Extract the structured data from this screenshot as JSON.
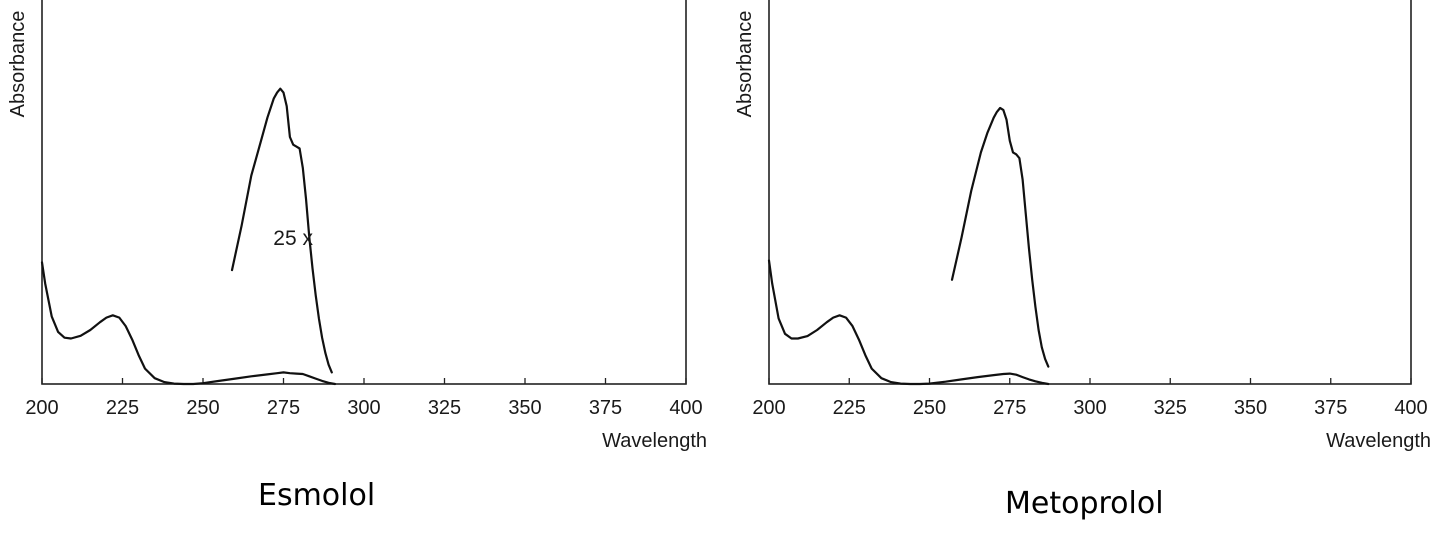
{
  "chart_data": [
    {
      "type": "line",
      "title": "",
      "caption": "Esmolol",
      "xlabel": "Wavelength",
      "ylabel": "Absorbance",
      "xlim": [
        200,
        400
      ],
      "ylim": [
        0,
        1
      ],
      "grid": false,
      "x_ticks": [
        "200",
        "225",
        "250",
        "275",
        "300",
        "325",
        "350",
        "375",
        "400"
      ],
      "annotations": [
        {
          "text": "25 x",
          "x": 278,
          "y": 0.36
        }
      ],
      "series": [
        {
          "x": [
            200,
            201,
            203,
            205,
            207,
            209,
            212,
            215,
            218,
            220,
            222,
            224,
            226,
            228,
            230,
            232,
            235,
            238,
            241,
            244,
            247,
            250,
            255,
            260,
            265,
            270,
            273,
            275,
            277,
            279,
            281,
            283,
            285,
            287,
            289,
            291
          ],
          "y": [
            0.315,
            0.26,
            0.175,
            0.135,
            0.12,
            0.118,
            0.125,
            0.14,
            0.16,
            0.172,
            0.178,
            0.172,
            0.15,
            0.115,
            0.075,
            0.04,
            0.015,
            0.005,
            0.001,
            0,
            0,
            0.002,
            0.008,
            0.014,
            0.02,
            0.025,
            0.028,
            0.03,
            0.028,
            0.027,
            0.026,
            0.02,
            0.014,
            0.008,
            0.003,
            0
          ]
        },
        {
          "x": [
            259,
            262,
            265,
            268,
            270,
            272,
            273,
            274,
            275,
            276,
            277,
            278,
            279,
            280,
            281,
            282,
            283,
            284,
            285,
            286,
            287,
            288,
            289,
            290
          ],
          "y": [
            0.295,
            0.41,
            0.54,
            0.63,
            0.69,
            0.74,
            0.755,
            0.765,
            0.755,
            0.72,
            0.64,
            0.62,
            0.615,
            0.61,
            0.56,
            0.48,
            0.38,
            0.3,
            0.23,
            0.17,
            0.12,
            0.08,
            0.05,
            0.03
          ]
        }
      ]
    },
    {
      "type": "line",
      "title": "",
      "caption": "Metoprolol",
      "xlabel": "Wavelength",
      "ylabel": "Absorbance",
      "xlim": [
        200,
        400
      ],
      "ylim": [
        0,
        1
      ],
      "grid": false,
      "x_ticks": [
        "200",
        "225",
        "250",
        "275",
        "300",
        "325",
        "350",
        "375",
        "400"
      ],
      "series": [
        {
          "x": [
            200,
            201,
            203,
            205,
            207,
            209,
            212,
            215,
            218,
            220,
            222,
            224,
            226,
            228,
            230,
            232,
            235,
            238,
            241,
            244,
            247,
            250,
            255,
            260,
            265,
            270,
            273,
            275,
            277,
            279,
            281,
            283,
            285,
            287
          ],
          "y": [
            0.32,
            0.26,
            0.17,
            0.13,
            0.118,
            0.118,
            0.124,
            0.14,
            0.16,
            0.172,
            0.178,
            0.172,
            0.15,
            0.115,
            0.075,
            0.04,
            0.015,
            0.005,
            0.001,
            0,
            0,
            0.001,
            0.006,
            0.012,
            0.018,
            0.023,
            0.026,
            0.027,
            0.024,
            0.018,
            0.012,
            0.007,
            0.003,
            0
          ]
        },
        {
          "x": [
            257,
            260,
            263,
            266,
            268,
            270,
            271,
            272,
            273,
            274,
            275,
            276,
            277,
            278,
            279,
            280,
            281,
            282,
            283,
            284,
            285,
            286,
            287
          ],
          "y": [
            0.27,
            0.38,
            0.5,
            0.6,
            0.65,
            0.69,
            0.705,
            0.715,
            0.71,
            0.685,
            0.63,
            0.6,
            0.595,
            0.585,
            0.53,
            0.44,
            0.35,
            0.27,
            0.2,
            0.14,
            0.095,
            0.065,
            0.045
          ]
        }
      ]
    }
  ]
}
